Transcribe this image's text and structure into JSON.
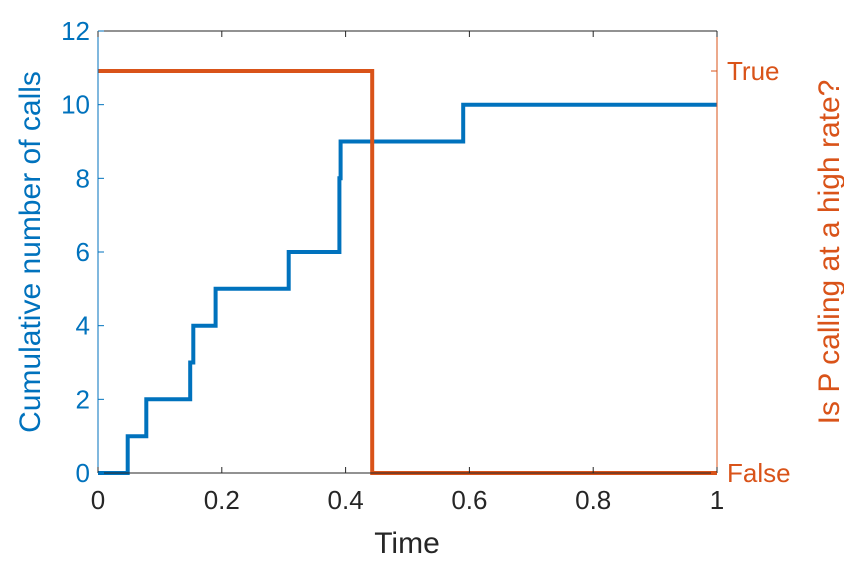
{
  "chart_data": {
    "type": "line",
    "title": "",
    "xlabel": "Time",
    "ylabel_left": "Cumulative number of calls",
    "ylabel_right": "Is P calling at a high rate?",
    "xlim": [
      0,
      1
    ],
    "ylim_left": [
      0,
      12
    ],
    "grid": false,
    "x_ticks": [
      {
        "value": 0,
        "label": "0"
      },
      {
        "value": 0.2,
        "label": "0.2"
      },
      {
        "value": 0.4,
        "label": "0.4"
      },
      {
        "value": 0.6,
        "label": "0.6"
      },
      {
        "value": 0.8,
        "label": "0.8"
      },
      {
        "value": 1,
        "label": "1"
      }
    ],
    "y_ticks_left": [
      {
        "value": 0,
        "label": "0"
      },
      {
        "value": 2,
        "label": "2"
      },
      {
        "value": 4,
        "label": "4"
      },
      {
        "value": 6,
        "label": "6"
      },
      {
        "value": 8,
        "label": "8"
      },
      {
        "value": 10,
        "label": "10"
      },
      {
        "value": 12,
        "label": "12"
      }
    ],
    "y_ticks_right": [
      {
        "value": 0,
        "label": "False"
      },
      {
        "value": 1,
        "label": "True"
      }
    ],
    "series": [
      {
        "axis": "left",
        "color": "#0072BD",
        "step": true,
        "x": [
          0,
          0.048,
          0.078,
          0.149,
          0.154,
          0.19,
          0.308,
          0.39,
          0.392,
          0.59,
          1.0
        ],
        "y": [
          0,
          1,
          2,
          3,
          4,
          5,
          6,
          8,
          9,
          10,
          10
        ]
      },
      {
        "axis": "right",
        "color": "#D95319",
        "step": true,
        "x": [
          0,
          0.443,
          1.0
        ],
        "y": [
          1,
          0,
          0
        ]
      }
    ]
  }
}
